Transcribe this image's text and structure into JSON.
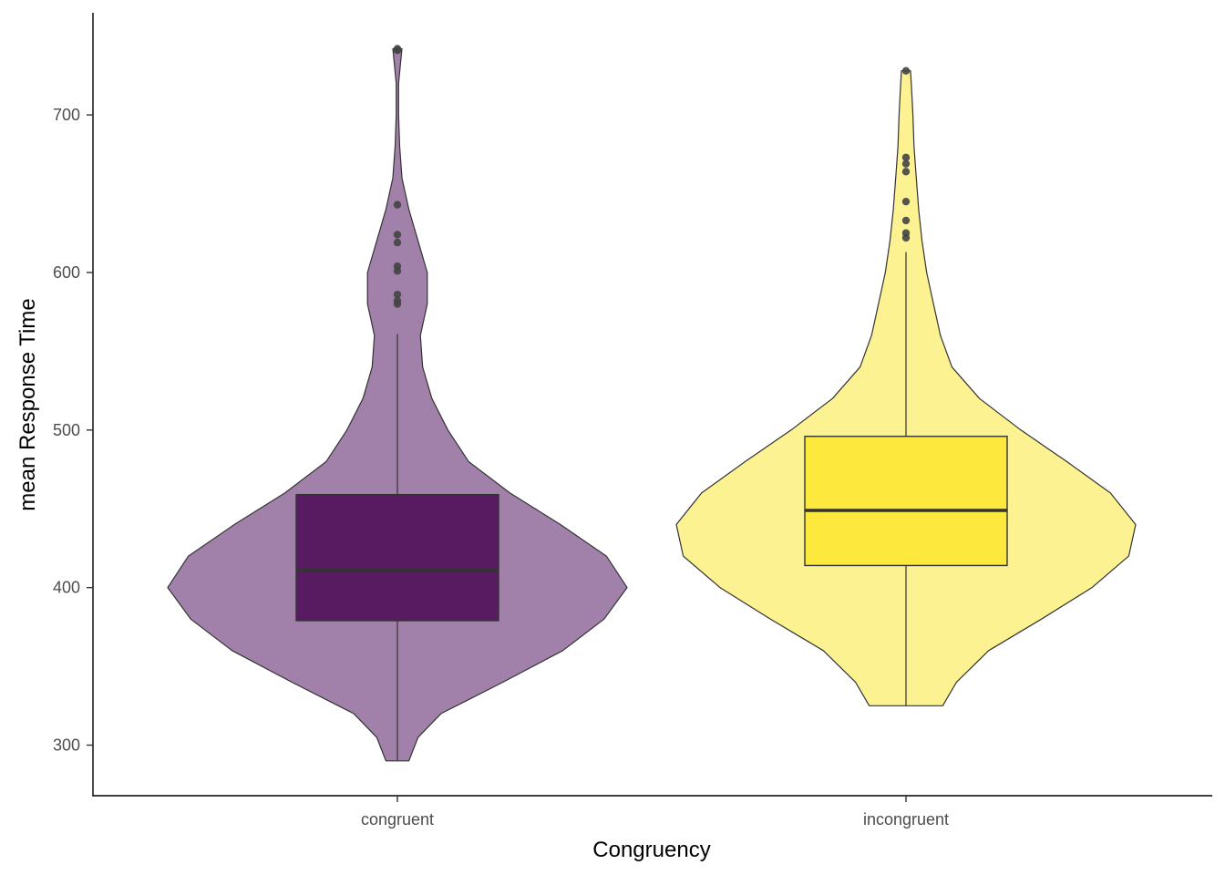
{
  "chart_data": {
    "type": "violin",
    "title": "",
    "xlabel": "Congruency",
    "ylabel": "mean Response Time",
    "categories": [
      "congruent",
      "incongruent"
    ],
    "ylim": [
      268,
      765
    ],
    "yticks": [
      300,
      400,
      500,
      600,
      700
    ],
    "grid": false,
    "legend": "none",
    "series": [
      {
        "category": "congruent",
        "violin_color": "#a180a9",
        "box_color": "#581b62",
        "range": [
          290,
          742
        ],
        "density": [
          [
            290,
            0.05
          ],
          [
            305,
            0.09
          ],
          [
            320,
            0.19
          ],
          [
            340,
            0.46
          ],
          [
            360,
            0.72
          ],
          [
            380,
            0.9
          ],
          [
            400,
            1.0
          ],
          [
            420,
            0.91
          ],
          [
            440,
            0.71
          ],
          [
            460,
            0.49
          ],
          [
            480,
            0.31
          ],
          [
            500,
            0.22
          ],
          [
            520,
            0.15
          ],
          [
            540,
            0.11
          ],
          [
            560,
            0.1
          ],
          [
            580,
            0.13
          ],
          [
            600,
            0.13
          ],
          [
            620,
            0.09
          ],
          [
            640,
            0.05
          ],
          [
            660,
            0.02
          ],
          [
            680,
            0.01
          ],
          [
            700,
            0.005
          ],
          [
            720,
            0.005
          ],
          [
            735,
            0.015
          ],
          [
            742,
            0.02
          ]
        ],
        "box": {
          "q1": 379,
          "median": 411,
          "q3": 459,
          "whisker_low": 290,
          "whisker_high": 561
        },
        "outliers": [
          580,
          582,
          586,
          601,
          604,
          619,
          624,
          643,
          741,
          742
        ]
      },
      {
        "category": "incongruent",
        "violin_color": "#fcf291",
        "box_color": "#fde93d",
        "range": [
          325,
          728
        ],
        "density": [
          [
            325,
            0.16
          ],
          [
            340,
            0.22
          ],
          [
            360,
            0.36
          ],
          [
            380,
            0.59
          ],
          [
            400,
            0.81
          ],
          [
            420,
            0.97
          ],
          [
            440,
            1.0
          ],
          [
            460,
            0.89
          ],
          [
            480,
            0.7
          ],
          [
            500,
            0.5
          ],
          [
            520,
            0.32
          ],
          [
            540,
            0.2
          ],
          [
            560,
            0.15
          ],
          [
            580,
            0.12
          ],
          [
            600,
            0.09
          ],
          [
            620,
            0.07
          ],
          [
            640,
            0.055
          ],
          [
            660,
            0.045
          ],
          [
            680,
            0.035
          ],
          [
            700,
            0.03
          ],
          [
            715,
            0.025
          ],
          [
            728,
            0.02
          ]
        ],
        "box": {
          "q1": 414,
          "median": 449,
          "q3": 496,
          "whisker_low": 325,
          "whisker_high": 613
        },
        "outliers": [
          622,
          625,
          633,
          645,
          664,
          669,
          673,
          728
        ]
      }
    ]
  }
}
